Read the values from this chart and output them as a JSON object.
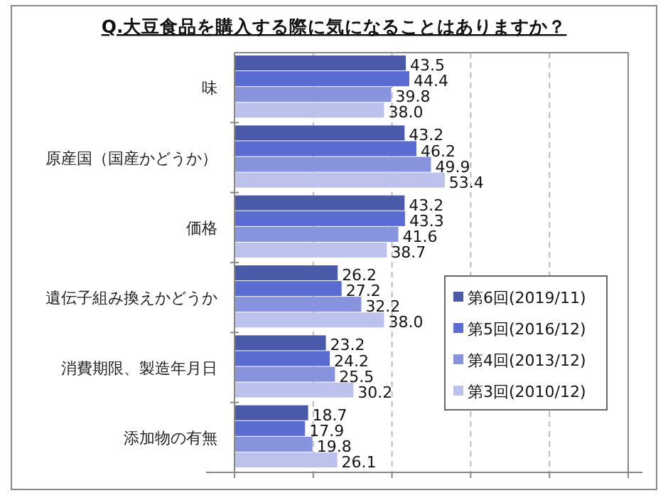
{
  "chart_data": {
    "type": "bar",
    "orientation": "horizontal",
    "title": "Q.大豆食品を購入する際に気になることはありますか？",
    "categories": [
      "味",
      "原産国（国産かどうか）",
      "価格",
      "遺伝子組み換えかどうか",
      "消費期限、製造年月日",
      "添加物の有無"
    ],
    "series": [
      {
        "name": "第6回(2019/11)",
        "color": "#4b5aa8",
        "values": [
          43.5,
          43.2,
          43.2,
          26.2,
          23.2,
          18.7
        ],
        "value_labels": [
          "43.5",
          "43.2",
          "43.2",
          "26.2",
          "23.2",
          "18.7"
        ]
      },
      {
        "name": "第5回(2016/12)",
        "color": "#5a6bd2",
        "values": [
          44.4,
          46.2,
          43.3,
          27.2,
          24.2,
          17.9
        ],
        "value_labels": [
          "44.4",
          "46.2",
          "43.3",
          "27.2",
          "24.2",
          "17.9"
        ]
      },
      {
        "name": "第4回(2013/12)",
        "color": "#8793dc",
        "values": [
          39.8,
          49.9,
          41.6,
          32.2,
          25.5,
          19.8
        ],
        "value_labels": [
          "39.8",
          "49.9",
          "41.6",
          "32.2",
          "25.5",
          "19.8"
        ]
      },
      {
        "name": "第3回(2010/12)",
        "color": "#bcc2ec",
        "values": [
          38.0,
          53.4,
          38.7,
          38.0,
          30.2,
          26.1
        ],
        "value_labels": [
          "38.0",
          "53.4",
          "38.7",
          "38.0",
          "30.2",
          "26.1"
        ]
      }
    ],
    "xlim": [
      0,
      100
    ],
    "xticks": [
      {
        "value": 0,
        "label": null
      },
      {
        "value": 20,
        "label": null
      },
      {
        "value": 40,
        "label": null
      },
      {
        "value": 60,
        "label": null
      },
      {
        "value": 80,
        "label": null
      },
      {
        "value": 100,
        "label": null
      }
    ],
    "grid": "x",
    "legend": "right",
    "tick_labels": "y"
  }
}
